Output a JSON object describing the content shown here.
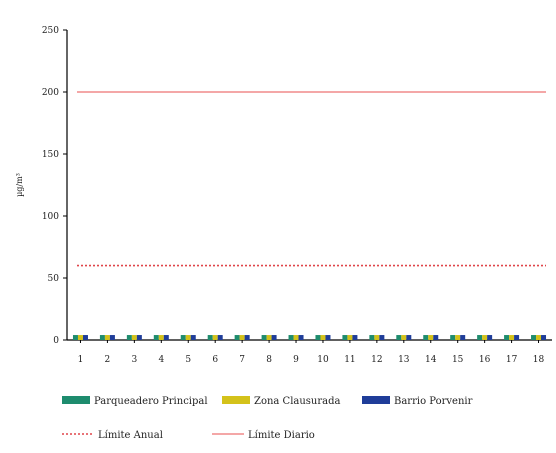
{
  "chart_data": {
    "type": "bar",
    "title": "",
    "xlabel": "",
    "ylabel": "µg/m³",
    "ylim": [
      0,
      250
    ],
    "yticks": [
      0,
      50,
      100,
      150,
      200,
      250
    ],
    "grid": false,
    "legend_position": "bottom",
    "categories": [
      "1",
      "2",
      "3",
      "4",
      "5",
      "6",
      "7",
      "8",
      "9",
      "10",
      "11",
      "12",
      "13",
      "14",
      "15",
      "16",
      "17",
      "18"
    ],
    "series": [
      {
        "name": "Parqueadero Principal",
        "color": "#1e8c6e",
        "values": [
          4,
          4,
          4,
          4,
          4,
          4,
          4,
          4,
          4,
          4,
          4,
          4,
          4,
          4,
          4,
          4,
          4,
          4
        ]
      },
      {
        "name": "Zona Clausurada",
        "color": "#d4c21a",
        "values": [
          4,
          4,
          4,
          4,
          4,
          4,
          4,
          4,
          4,
          4,
          4,
          4,
          4,
          4,
          4,
          4,
          4,
          4
        ]
      },
      {
        "name": "Barrio Porvenir",
        "color": "#1f3d99",
        "values": [
          4,
          4,
          4,
          4,
          4,
          4,
          4,
          4,
          4,
          4,
          4,
          4,
          4,
          4,
          4,
          4,
          4,
          4
        ]
      }
    ],
    "reference_lines": [
      {
        "name": "Límite Anual",
        "value": 60,
        "color": "#e0454a",
        "style": "dotted"
      },
      {
        "name": "Límite Diario",
        "value": 200,
        "color": "#f08a8a",
        "style": "solid"
      }
    ]
  }
}
